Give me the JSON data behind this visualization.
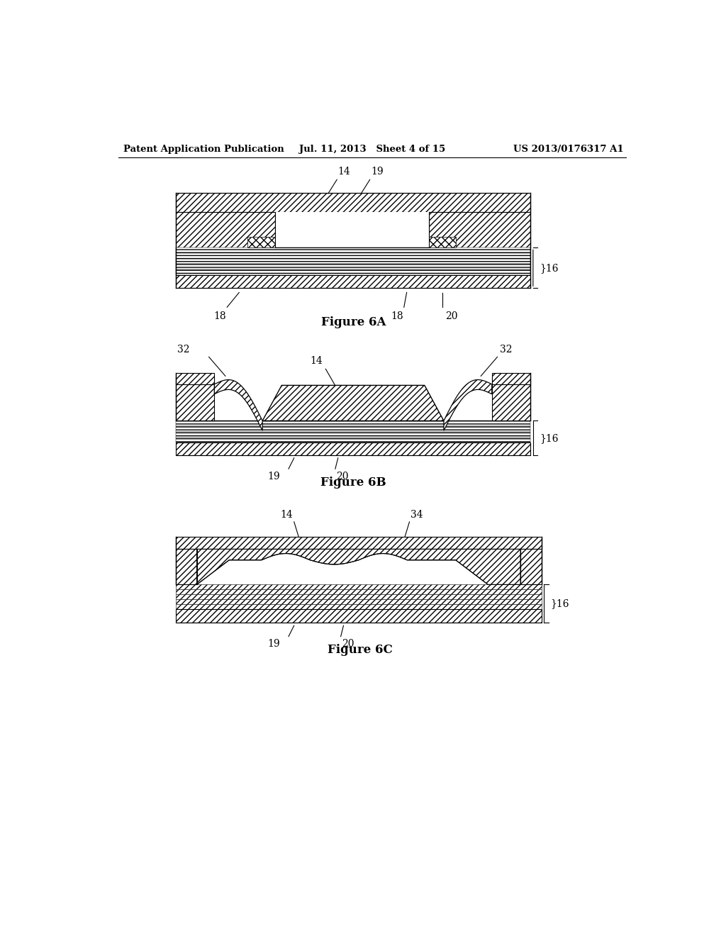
{
  "background_color": "#ffffff",
  "header_left": "Patent Application Publication",
  "header_mid": "Jul. 11, 2013   Sheet 4 of 15",
  "header_right": "US 2013/0176317 A1",
  "fig6A_caption": "Figure 6A",
  "fig6B_caption": "Figure 6B",
  "fig6C_caption": "Figure 6C",
  "line_color": "#000000",
  "hatch_color": "#000000"
}
